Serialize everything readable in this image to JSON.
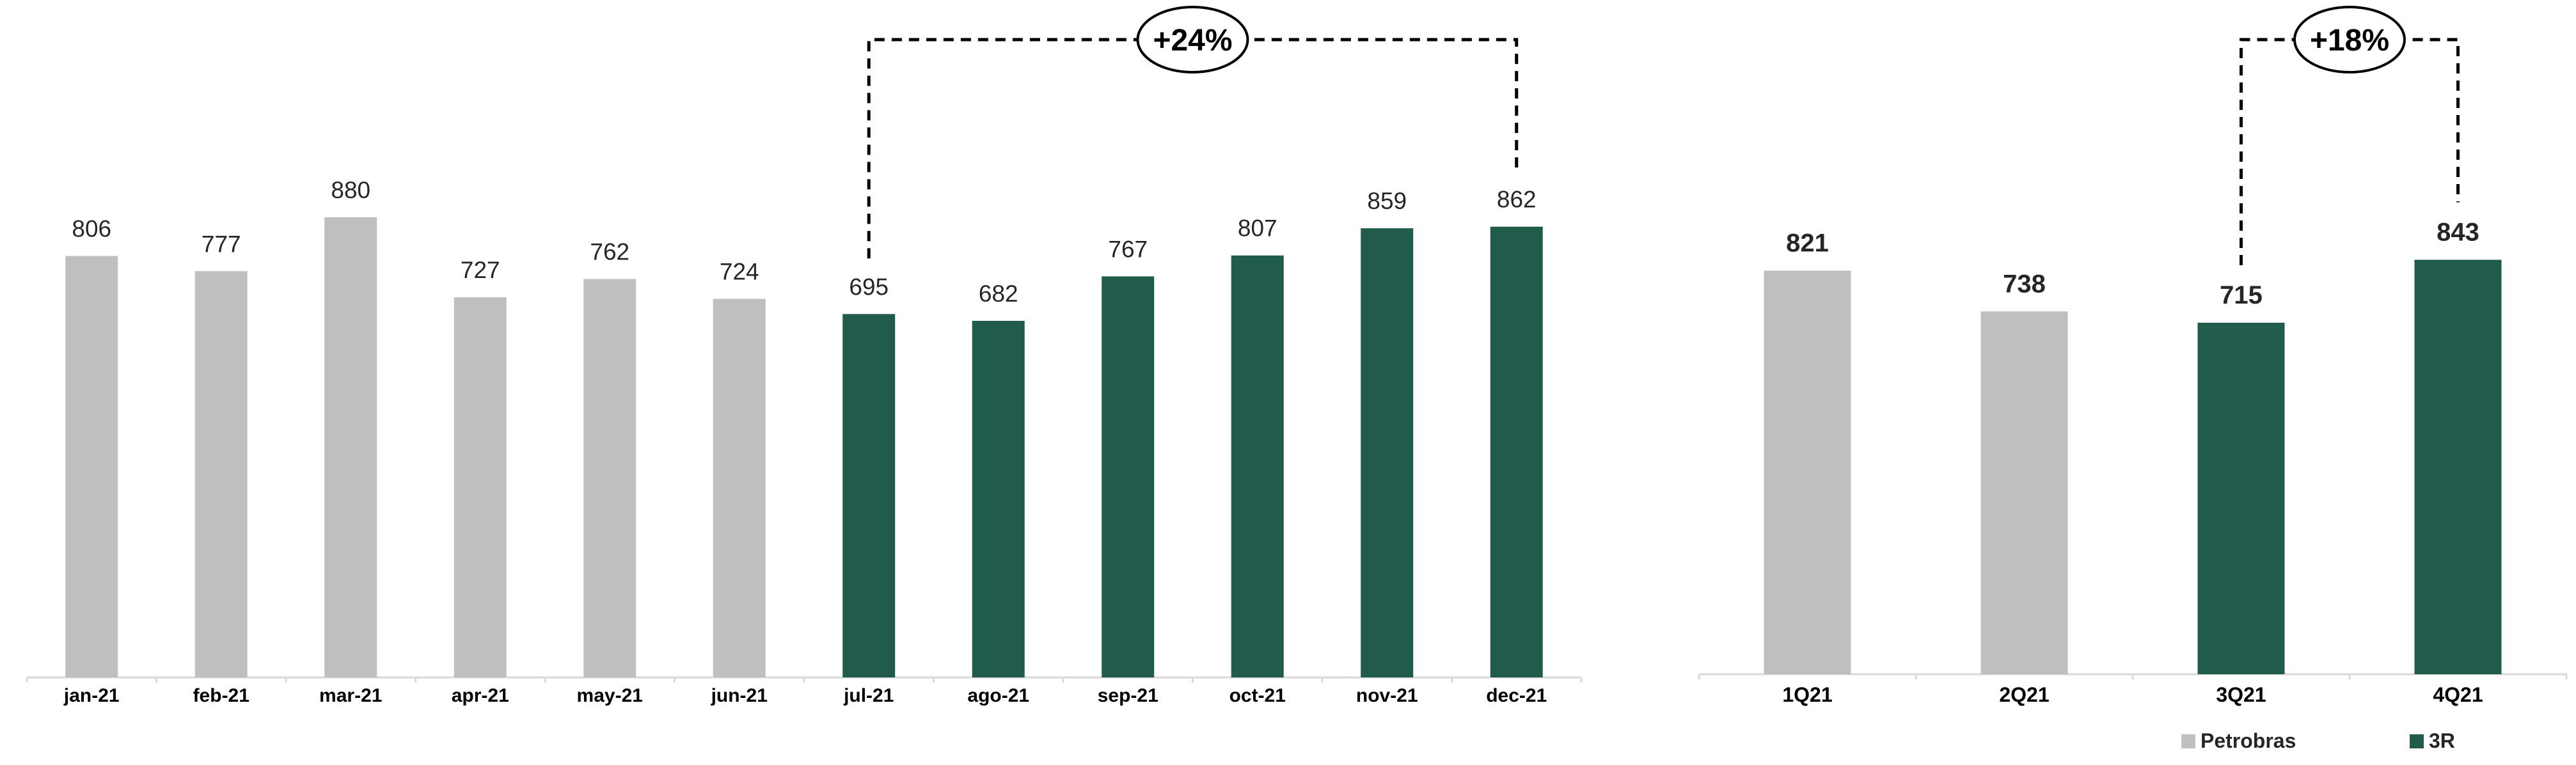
{
  "colors": {
    "petrobras": "#BFBFBF",
    "r3": "#215B4B"
  },
  "chart_data": [
    {
      "type": "bar",
      "categories": [
        "jan-21",
        "feb-21",
        "mar-21",
        "apr-21",
        "may-21",
        "jun-21",
        "jul-21",
        "ago-21",
        "sep-21",
        "oct-21",
        "nov-21",
        "dec-21"
      ],
      "values": [
        806,
        777,
        880,
        727,
        762,
        724,
        695,
        682,
        767,
        807,
        859,
        862
      ],
      "operator": [
        "Petrobras",
        "Petrobras",
        "Petrobras",
        "Petrobras",
        "Petrobras",
        "Petrobras",
        "3R",
        "3R",
        "3R",
        "3R",
        "3R",
        "3R"
      ],
      "ylim": [
        0,
        1050
      ],
      "annotation": {
        "label": "+24%",
        "from": "jul-21",
        "to": "dec-21"
      }
    },
    {
      "type": "bar",
      "categories": [
        "1Q21",
        "2Q21",
        "3Q21",
        "4Q21"
      ],
      "values": [
        821,
        738,
        715,
        843
      ],
      "operator": [
        "Petrobras",
        "Petrobras",
        "3R",
        "3R"
      ],
      "ylim": [
        0,
        1050
      ],
      "annotation": {
        "label": "+18%",
        "from": "3Q21",
        "to": "4Q21"
      }
    }
  ],
  "legend": [
    {
      "name": "Petrobras",
      "color": "#BFBFBF"
    },
    {
      "name": "3R",
      "color": "#215B4B"
    }
  ]
}
